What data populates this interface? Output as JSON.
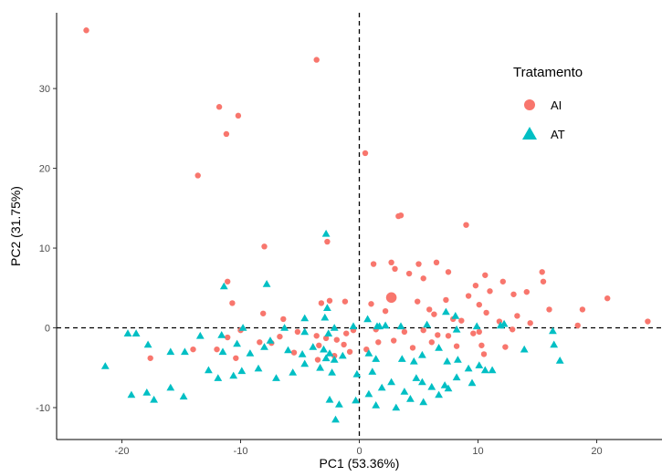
{
  "chart_data": {
    "type": "scatter",
    "xlabel": "PC1 (53.36%)",
    "ylabel": "PC2 (31.75%)",
    "xlim": [
      -25.5,
      25.5
    ],
    "ylim": [
      -14,
      39.5
    ],
    "x_ticks": [
      -20,
      -10,
      0,
      10,
      20
    ],
    "y_ticks": [
      -10,
      0,
      10,
      20,
      30
    ],
    "reference_lines": {
      "x": 0,
      "y": 0,
      "style": "dashed"
    },
    "grid": false,
    "legend": {
      "title": "Tratamento",
      "position": "top-right"
    },
    "series": [
      {
        "name": "AI",
        "marker": "circle",
        "color": "#F8766D",
        "centroid": [
          2.7,
          3.8
        ],
        "points": [
          [
            -23.0,
            37.3
          ],
          [
            -3.6,
            33.6
          ],
          [
            -11.8,
            27.7
          ],
          [
            -10.2,
            26.6
          ],
          [
            -11.2,
            24.3
          ],
          [
            -13.6,
            19.1
          ],
          [
            0.5,
            21.9
          ],
          [
            3.5,
            14.1
          ],
          [
            3.3,
            14.0
          ],
          [
            9.0,
            12.9
          ],
          [
            -8.0,
            10.2
          ],
          [
            -2.7,
            10.8
          ],
          [
            1.2,
            8.0
          ],
          [
            2.7,
            8.2
          ],
          [
            5.0,
            8.0
          ],
          [
            6.5,
            8.2
          ],
          [
            10.6,
            6.6
          ],
          [
            3.0,
            7.4
          ],
          [
            4.2,
            6.8
          ],
          [
            5.4,
            6.2
          ],
          [
            7.5,
            7.0
          ],
          [
            9.8,
            5.3
          ],
          [
            12.1,
            5.8
          ],
          [
            15.4,
            7.0
          ],
          [
            11.0,
            4.6
          ],
          [
            13.0,
            4.2
          ],
          [
            14.1,
            4.5
          ],
          [
            15.5,
            5.8
          ],
          [
            9.2,
            4.0
          ],
          [
            7.3,
            3.5
          ],
          [
            -11.1,
            5.8
          ],
          [
            -10.7,
            3.1
          ],
          [
            -8.1,
            1.8
          ],
          [
            -6.4,
            1.1
          ],
          [
            -3.2,
            3.1
          ],
          [
            -2.5,
            3.4
          ],
          [
            -1.2,
            3.3
          ],
          [
            1.0,
            3.0
          ],
          [
            2.2,
            2.1
          ],
          [
            4.9,
            3.3
          ],
          [
            5.9,
            2.3
          ],
          [
            6.3,
            1.7
          ],
          [
            7.9,
            1.1
          ],
          [
            8.6,
            0.9
          ],
          [
            10.1,
            2.9
          ],
          [
            10.7,
            1.9
          ],
          [
            11.8,
            0.8
          ],
          [
            13.3,
            1.5
          ],
          [
            14.4,
            0.6
          ],
          [
            16.0,
            2.3
          ],
          [
            18.8,
            2.3
          ],
          [
            20.9,
            3.7
          ],
          [
            24.3,
            0.8
          ],
          [
            18.4,
            0.3
          ],
          [
            12.9,
            -0.2
          ],
          [
            10.1,
            -0.5
          ],
          [
            9.6,
            -0.7
          ],
          [
            7.5,
            -1.0
          ],
          [
            6.6,
            -0.9
          ],
          [
            5.4,
            -0.3
          ],
          [
            3.8,
            -0.5
          ],
          [
            1.4,
            -0.2
          ],
          [
            -0.5,
            -0.3
          ],
          [
            -1.1,
            -0.7
          ],
          [
            -1.9,
            -1.5
          ],
          [
            -2.8,
            -1.3
          ],
          [
            -3.6,
            -1.0
          ],
          [
            -5.2,
            -0.5
          ],
          [
            -6.7,
            -1.1
          ],
          [
            -7.4,
            -1.9
          ],
          [
            -8.4,
            -1.8
          ],
          [
            -10.0,
            -0.3
          ],
          [
            -11.1,
            -1.2
          ],
          [
            -12.0,
            -2.7
          ],
          [
            -14.0,
            -2.7
          ],
          [
            -10.4,
            -3.8
          ],
          [
            -17.6,
            -3.8
          ],
          [
            -5.5,
            -3.1
          ],
          [
            -3.4,
            -2.2
          ],
          [
            -1.3,
            -2.1
          ],
          [
            0.6,
            -2.7
          ],
          [
            1.6,
            -1.8
          ],
          [
            4.5,
            -2.5
          ],
          [
            6.1,
            -1.8
          ],
          [
            8.2,
            -2.3
          ],
          [
            10.3,
            -2.2
          ],
          [
            12.3,
            -2.4
          ],
          [
            10.5,
            -3.3
          ],
          [
            -0.8,
            -3.0
          ],
          [
            -2.1,
            -3.5
          ],
          [
            2.9,
            -1.6
          ],
          [
            -3.5,
            -4.0
          ]
        ]
      },
      {
        "name": "AT",
        "marker": "triangle",
        "color": "#00BFC4",
        "points": [
          [
            -2.8,
            11.8
          ],
          [
            -11.4,
            5.2
          ],
          [
            -7.8,
            5.5
          ],
          [
            -2.7,
            2.5
          ],
          [
            -4.6,
            1.2
          ],
          [
            -2.9,
            1.3
          ],
          [
            0.7,
            1.1
          ],
          [
            1.5,
            0.2
          ],
          [
            2.2,
            0.3
          ],
          [
            7.3,
            2.0
          ],
          [
            8.1,
            1.5
          ],
          [
            12.2,
            0.5
          ],
          [
            -13.4,
            -1.0
          ],
          [
            -11.6,
            -0.9
          ],
          [
            -9.8,
            0.0
          ],
          [
            -6.3,
            0.0
          ],
          [
            -4.6,
            -0.5
          ],
          [
            -2.6,
            -0.7
          ],
          [
            -2.1,
            0.0
          ],
          [
            -0.5,
            0.2
          ],
          [
            1.7,
            0.2
          ],
          [
            3.5,
            0.2
          ],
          [
            5.7,
            0.4
          ],
          [
            8.2,
            -0.2
          ],
          [
            9.9,
            0.2
          ],
          [
            11.9,
            0.3
          ],
          [
            16.3,
            -0.4
          ],
          [
            -19.5,
            -0.7
          ],
          [
            -18.8,
            -0.7
          ],
          [
            -17.8,
            -2.1
          ],
          [
            -15.9,
            -3.0
          ],
          [
            -14.7,
            -3.0
          ],
          [
            -11.5,
            -3.0
          ],
          [
            -10.3,
            -2.0
          ],
          [
            -9.2,
            -3.2
          ],
          [
            -8.0,
            -2.4
          ],
          [
            -7.5,
            -1.6
          ],
          [
            -6.0,
            -2.8
          ],
          [
            -4.8,
            -3.3
          ],
          [
            -3.9,
            -2.4
          ],
          [
            -3.0,
            -2.7
          ],
          [
            -2.8,
            -3.8
          ],
          [
            -2.5,
            -3.2
          ],
          [
            -2.1,
            -4.0
          ],
          [
            -1.4,
            -3.5
          ],
          [
            0.8,
            -3.2
          ],
          [
            1.4,
            -3.9
          ],
          [
            3.6,
            -3.9
          ],
          [
            4.6,
            -4.2
          ],
          [
            5.3,
            -3.4
          ],
          [
            6.7,
            -2.5
          ],
          [
            7.4,
            -4.2
          ],
          [
            8.3,
            -4.0
          ],
          [
            9.2,
            -5.1
          ],
          [
            10.1,
            -4.7
          ],
          [
            10.6,
            -5.3
          ],
          [
            11.2,
            -5.3
          ],
          [
            13.9,
            -2.7
          ],
          [
            16.4,
            -2.1
          ],
          [
            16.9,
            -4.1
          ],
          [
            -21.4,
            -4.8
          ],
          [
            -19.2,
            -8.4
          ],
          [
            -17.9,
            -8.1
          ],
          [
            -17.3,
            -9.0
          ],
          [
            -15.9,
            -7.5
          ],
          [
            -14.8,
            -8.6
          ],
          [
            -12.7,
            -5.3
          ],
          [
            -11.9,
            -6.3
          ],
          [
            -10.6,
            -6.0
          ],
          [
            -9.9,
            -5.4
          ],
          [
            -8.5,
            -5.1
          ],
          [
            -7.0,
            -6.3
          ],
          [
            -5.6,
            -5.6
          ],
          [
            -4.6,
            -4.5
          ],
          [
            -3.3,
            -5.0
          ],
          [
            -2.3,
            -5.6
          ],
          [
            -0.2,
            -5.8
          ],
          [
            1.1,
            -5.5
          ],
          [
            1.9,
            -7.5
          ],
          [
            2.7,
            -6.8
          ],
          [
            3.8,
            -8.0
          ],
          [
            4.8,
            -6.3
          ],
          [
            5.3,
            -6.8
          ],
          [
            6.1,
            -7.4
          ],
          [
            7.2,
            -7.2
          ],
          [
            7.5,
            -7.6
          ],
          [
            8.2,
            -6.2
          ],
          [
            9.5,
            -6.9
          ],
          [
            -2.5,
            -9.0
          ],
          [
            -1.7,
            -9.6
          ],
          [
            -0.3,
            -9.1
          ],
          [
            0.8,
            -8.3
          ],
          [
            1.4,
            -9.7
          ],
          [
            3.1,
            -10.0
          ],
          [
            4.3,
            -8.9
          ],
          [
            5.4,
            -9.3
          ],
          [
            6.7,
            -8.4
          ],
          [
            -2.0,
            -11.5
          ]
        ]
      }
    ]
  }
}
